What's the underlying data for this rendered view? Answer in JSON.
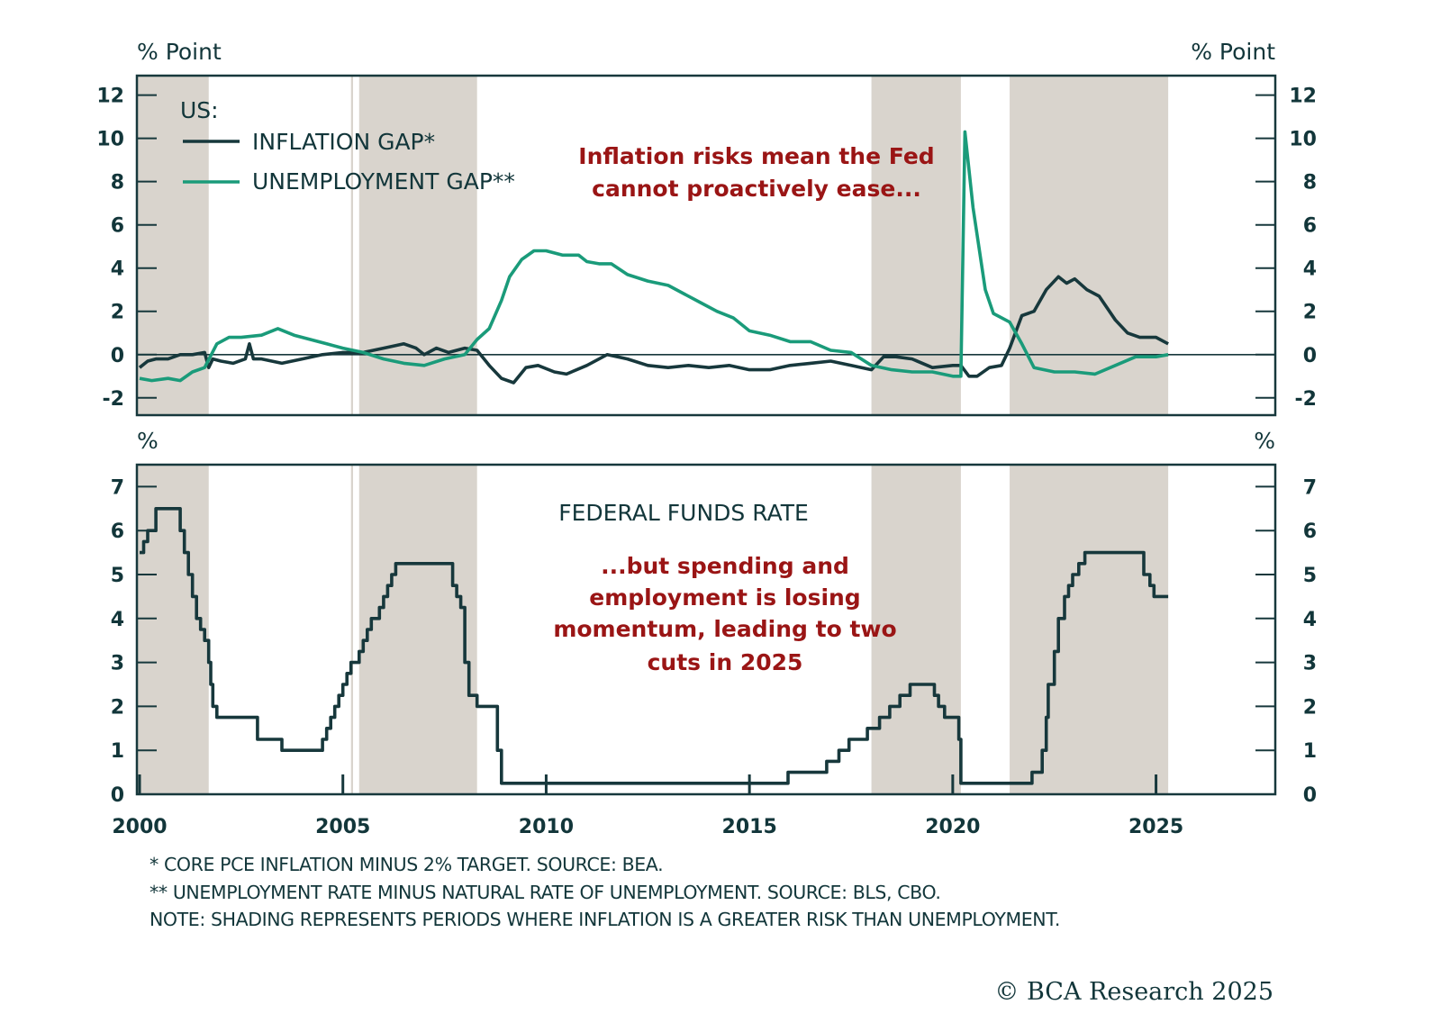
{
  "chart_data": [
    {
      "type": "line",
      "panel": "top",
      "unit_label_left": "% Point",
      "unit_label_right": "% Point",
      "ylim": [
        -2.8,
        12.9
      ],
      "xlim": [
        2000,
        2028
      ],
      "yticks": [
        12,
        10,
        8,
        6,
        4,
        2,
        0,
        -2
      ],
      "ytick_labels": [
        "12",
        "10",
        "8",
        "6",
        "4",
        "2",
        "0",
        "-2"
      ],
      "zero_line": true,
      "legend": {
        "title": "US:",
        "placement": "top-left",
        "entries": [
          {
            "label": "INFLATION GAP*",
            "color": "#17383c"
          },
          {
            "label": "UNEMPLOYMENT GAP**",
            "color": "#1a9b7a"
          }
        ]
      },
      "annotation": {
        "lines": [
          "Inflation risks mean the Fed",
          "cannot proactively ease..."
        ],
        "color": "#9a1515"
      },
      "series": [
        {
          "name": "INFLATION GAP*",
          "color": "#17383c",
          "x": [
            2000.0,
            2000.2,
            2000.4,
            2000.7,
            2001.0,
            2001.3,
            2001.6,
            2001.7,
            2001.8,
            2002.0,
            2002.3,
            2002.6,
            2002.7,
            2002.8,
            2003.0,
            2003.5,
            2004.0,
            2004.5,
            2005.0,
            2005.5,
            2006.0,
            2006.5,
            2006.8,
            2007.0,
            2007.3,
            2007.6,
            2008.0,
            2008.3,
            2008.6,
            2008.9,
            2009.2,
            2009.5,
            2009.8,
            2010.2,
            2010.5,
            2011.0,
            2011.5,
            2012.0,
            2012.5,
            2013.0,
            2013.5,
            2014.0,
            2014.5,
            2015.0,
            2015.5,
            2016.0,
            2016.5,
            2017.0,
            2017.5,
            2018.0,
            2018.3,
            2018.6,
            2019.0,
            2019.5,
            2020.0,
            2020.2,
            2020.4,
            2020.6,
            2020.9,
            2021.2,
            2021.4,
            2021.7,
            2022.0,
            2022.3,
            2022.6,
            2022.8,
            2023.0,
            2023.3,
            2023.6,
            2024.0,
            2024.3,
            2024.6,
            2025.0,
            2025.3
          ],
          "y": [
            -0.6,
            -0.3,
            -0.2,
            -0.2,
            0.0,
            0.0,
            0.1,
            -0.6,
            -0.2,
            -0.3,
            -0.4,
            -0.2,
            0.5,
            -0.2,
            -0.2,
            -0.4,
            -0.2,
            0.0,
            0.1,
            0.1,
            0.3,
            0.5,
            0.3,
            0.0,
            0.3,
            0.1,
            0.3,
            0.2,
            -0.5,
            -1.1,
            -1.3,
            -0.6,
            -0.5,
            -0.8,
            -0.9,
            -0.5,
            0.0,
            -0.2,
            -0.5,
            -0.6,
            -0.5,
            -0.6,
            -0.5,
            -0.7,
            -0.7,
            -0.5,
            -0.4,
            -0.3,
            -0.5,
            -0.7,
            -0.1,
            -0.1,
            -0.2,
            -0.6,
            -0.5,
            -0.5,
            -1.0,
            -1.0,
            -0.6,
            -0.5,
            0.3,
            1.8,
            2.0,
            3.0,
            3.6,
            3.3,
            3.5,
            3.0,
            2.7,
            1.6,
            1.0,
            0.8,
            0.8,
            0.5
          ]
        },
        {
          "name": "UNEMPLOYMENT GAP**",
          "color": "#1a9b7a",
          "x": [
            2000.0,
            2000.3,
            2000.7,
            2001.0,
            2001.3,
            2001.6,
            2001.9,
            2002.2,
            2002.5,
            2003.0,
            2003.4,
            2003.8,
            2004.2,
            2004.6,
            2005.0,
            2005.5,
            2006.0,
            2006.5,
            2007.0,
            2007.5,
            2008.0,
            2008.3,
            2008.6,
            2008.9,
            2009.1,
            2009.4,
            2009.7,
            2010.0,
            2010.4,
            2010.8,
            2011.0,
            2011.3,
            2011.6,
            2012.0,
            2012.5,
            2013.0,
            2013.4,
            2013.8,
            2014.2,
            2014.6,
            2015.0,
            2015.5,
            2016.0,
            2016.5,
            2017.0,
            2017.5,
            2018.0,
            2018.5,
            2019.0,
            2019.5,
            2020.0,
            2020.2,
            2020.3,
            2020.5,
            2020.8,
            2021.0,
            2021.4,
            2021.7,
            2022.0,
            2022.5,
            2023.0,
            2023.5,
            2024.0,
            2024.5,
            2025.0,
            2025.3
          ],
          "y": [
            -1.1,
            -1.2,
            -1.1,
            -1.2,
            -0.8,
            -0.6,
            0.5,
            0.8,
            0.8,
            0.9,
            1.2,
            0.9,
            0.7,
            0.5,
            0.3,
            0.1,
            -0.2,
            -0.4,
            -0.5,
            -0.2,
            0.0,
            0.7,
            1.2,
            2.5,
            3.6,
            4.4,
            4.8,
            4.8,
            4.6,
            4.6,
            4.3,
            4.2,
            4.2,
            3.7,
            3.4,
            3.2,
            2.8,
            2.4,
            2.0,
            1.7,
            1.1,
            0.9,
            0.6,
            0.6,
            0.2,
            0.1,
            -0.5,
            -0.7,
            -0.8,
            -0.8,
            -1.0,
            -1.0,
            10.3,
            6.8,
            3.0,
            1.9,
            1.5,
            0.5,
            -0.6,
            -0.8,
            -0.8,
            -0.9,
            -0.5,
            -0.1,
            -0.1,
            0.0
          ]
        }
      ],
      "shaded_periods": [
        [
          2000.0,
          2001.7
        ],
        [
          2005.2,
          2005.25
        ],
        [
          2005.4,
          2008.3
        ],
        [
          2018.0,
          2020.2
        ],
        [
          2021.4,
          2025.3
        ]
      ]
    },
    {
      "type": "line",
      "panel": "bottom",
      "title": "FEDERAL FUNDS RATE",
      "unit_label_left": "%",
      "unit_label_right": "%",
      "ylim": [
        0,
        7.5
      ],
      "xlim": [
        2000,
        2028
      ],
      "yticks": [
        7,
        6,
        5,
        4,
        3,
        2,
        1,
        0
      ],
      "ytick_labels": [
        "7",
        "6",
        "5",
        "4",
        "3",
        "2",
        "1",
        "0"
      ],
      "xticks": [
        2000,
        2005,
        2010,
        2015,
        2020,
        2025
      ],
      "xtick_labels": [
        "2000",
        "2005",
        "2010",
        "2015",
        "2020",
        "2025"
      ],
      "annotation": {
        "lines": [
          "...but spending and",
          "employment is losing",
          "momentum, leading to two",
          "cuts in 2025"
        ],
        "color": "#9a1515"
      },
      "series": [
        {
          "name": "FEDERAL FUNDS RATE",
          "color": "#17383c",
          "step": true,
          "x": [
            2000.0,
            2000.1,
            2000.2,
            2000.4,
            2001.0,
            2001.1,
            2001.2,
            2001.3,
            2001.4,
            2001.5,
            2001.6,
            2001.7,
            2001.75,
            2001.8,
            2001.9,
            2002.9,
            2003.5,
            2004.5,
            2004.6,
            2004.7,
            2004.8,
            2004.9,
            2005.0,
            2005.1,
            2005.2,
            2005.4,
            2005.5,
            2005.6,
            2005.7,
            2005.9,
            2006.0,
            2006.1,
            2006.2,
            2006.3,
            2006.5,
            2007.7,
            2007.8,
            2007.9,
            2008.0,
            2008.1,
            2008.3,
            2008.8,
            2008.9,
            2009.0,
            2015.95,
            2016.9,
            2017.2,
            2017.45,
            2017.9,
            2018.2,
            2018.45,
            2018.7,
            2018.95,
            2019.55,
            2019.65,
            2019.8,
            2020.15,
            2020.2,
            2021.95,
            2022.2,
            2022.3,
            2022.35,
            2022.5,
            2022.6,
            2022.75,
            2022.85,
            2022.95,
            2023.1,
            2023.25,
            2023.55,
            2024.7,
            2024.85,
            2024.95
          ],
          "y": [
            5.5,
            5.75,
            6.0,
            6.5,
            6.0,
            5.5,
            5.0,
            4.5,
            4.0,
            3.75,
            3.5,
            3.0,
            2.5,
            2.0,
            1.75,
            1.25,
            1.0,
            1.25,
            1.5,
            1.75,
            2.0,
            2.25,
            2.5,
            2.75,
            3.0,
            3.25,
            3.5,
            3.75,
            4.0,
            4.25,
            4.5,
            4.75,
            5.0,
            5.25,
            5.25,
            4.75,
            4.5,
            4.25,
            3.0,
            2.25,
            2.0,
            1.0,
            0.25,
            0.25,
            0.5,
            0.75,
            1.0,
            1.25,
            1.5,
            1.75,
            2.0,
            2.25,
            2.5,
            2.25,
            2.0,
            1.75,
            1.25,
            0.25,
            0.5,
            1.0,
            1.75,
            2.5,
            3.25,
            4.0,
            4.5,
            4.75,
            5.0,
            5.25,
            5.5,
            5.5,
            5.0,
            4.75,
            4.5
          ],
          "x_end": 2025.3
        }
      ],
      "shaded_periods": [
        [
          2000.0,
          2001.7
        ],
        [
          2005.2,
          2005.25
        ],
        [
          2005.4,
          2008.3
        ],
        [
          2018.0,
          2020.2
        ],
        [
          2021.4,
          2025.3
        ]
      ]
    }
  ],
  "colors": {
    "axis": "#17383c",
    "inflation_gap": "#17383c",
    "unemployment_gap": "#1a9b7a",
    "fed_funds": "#17383c",
    "shading": "#d9d4cd",
    "annotation": "#9a1515"
  },
  "footnotes": {
    "line1": "* CORE PCE INFLATION MINUS 2% TARGET. SOURCE: BEA.",
    "line2": "** UNEMPLOYMENT RATE MINUS NATURAL RATE OF UNEMPLOYMENT. SOURCE: BLS, CBO.",
    "line3": "NOTE: SHADING REPRESENTS PERIODS WHERE INFLATION IS A GREATER RISK THAN UNEMPLOYMENT."
  },
  "copyright": "© BCA Research 2025"
}
